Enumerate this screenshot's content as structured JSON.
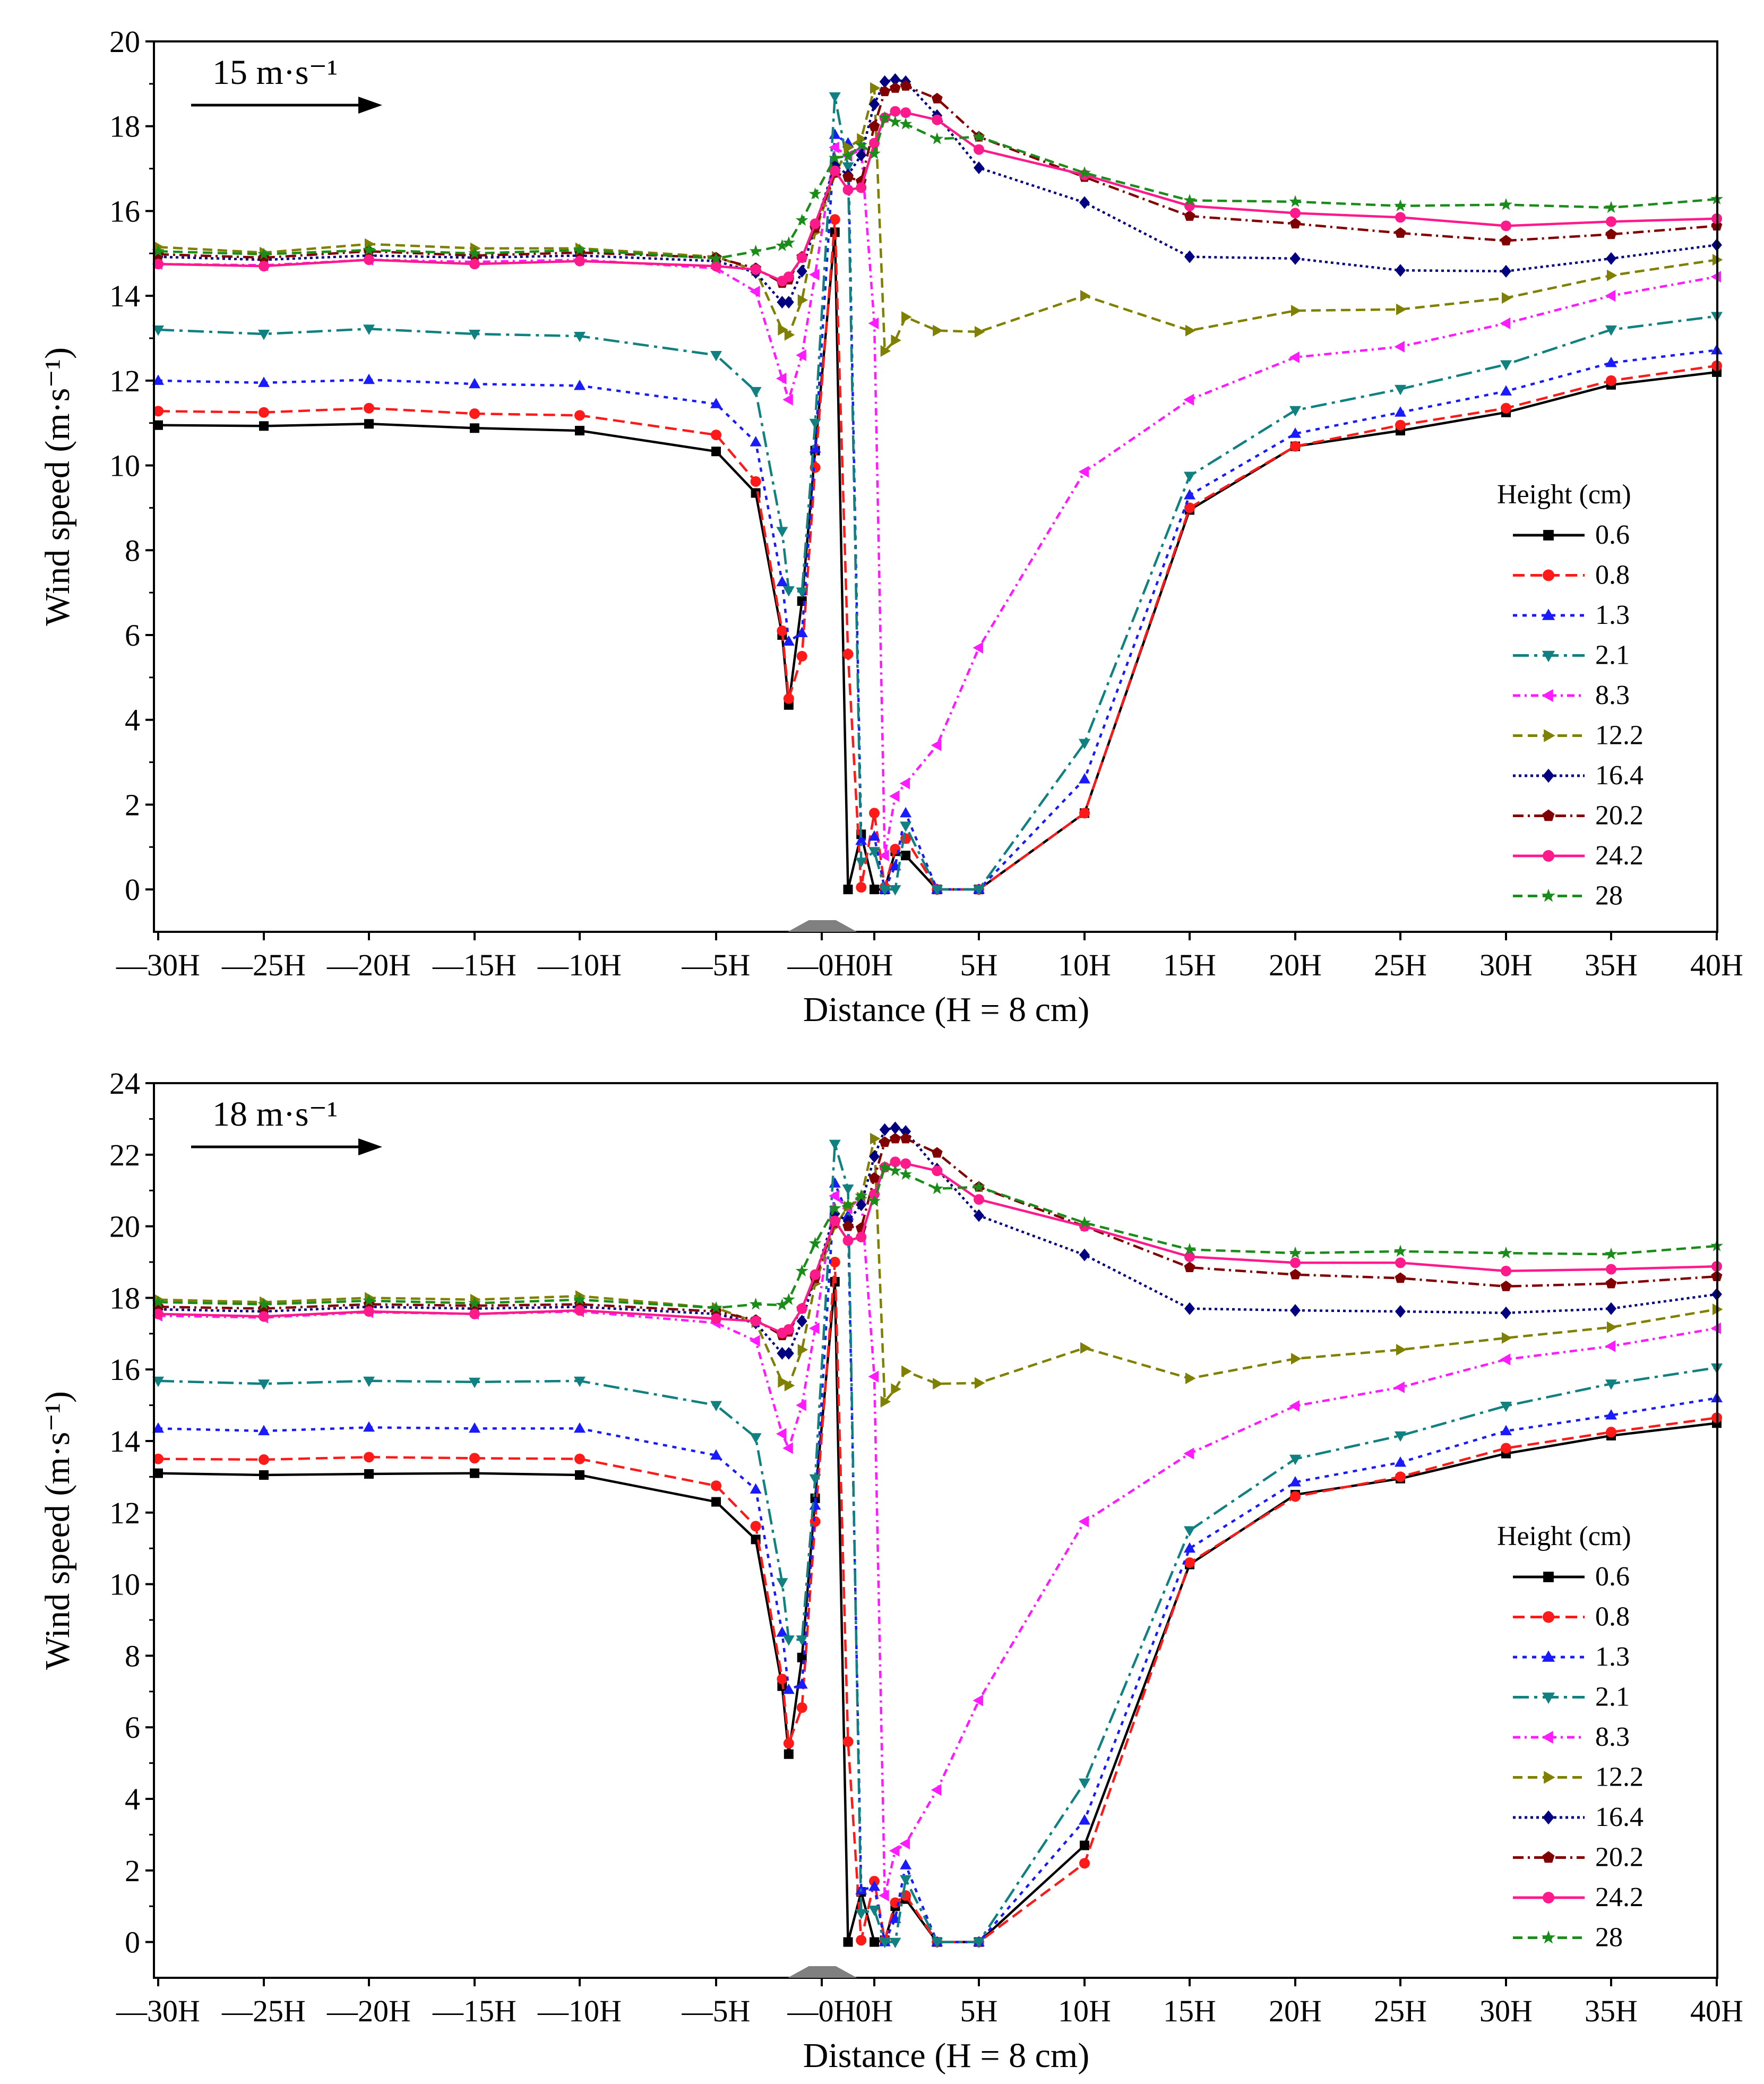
{
  "chart_data": [
    {
      "type": "line",
      "arrow_label": "15 m·s⁻¹",
      "ylabel": "Wind speed (m·s⁻¹)",
      "xlabel": "Distance (H = 8 cm)",
      "ylim": [
        -1,
        20
      ],
      "yticks": [
        0,
        2,
        4,
        6,
        8,
        10,
        12,
        14,
        16,
        18,
        20
      ],
      "legend_title": "Height (cm)",
      "x_tick_labels": [
        "—30H",
        "—25H",
        "—20H",
        "—15H",
        "—10H",
        "—5H",
        "—0H",
        "0H",
        "5H",
        "10H",
        "15H",
        "20H",
        "25H",
        "30H",
        "35H",
        "40H"
      ],
      "x": [
        -30,
        -25,
        -20,
        -15,
        -10,
        -5,
        -3.5,
        -2.5,
        -2.25,
        -1.75,
        -1.25,
        -0.75,
        -0.5,
        -0.25,
        0,
        0.5,
        1,
        1.5,
        3,
        5,
        10,
        15,
        20,
        25,
        30,
        35,
        40
      ],
      "series": [
        {
          "name": "0.6",
          "color": "#000000",
          "dash": "",
          "marker": "square",
          "values": [
            10.95,
            10.93,
            10.98,
            10.88,
            10.82,
            10.33,
            9.35,
            6.0,
            4.35,
            6.8,
            10.35,
            15.5,
            0.0,
            1.3,
            0.0,
            0.0,
            0.9,
            0.8,
            0.0,
            0.0,
            1.8,
            8.95,
            10.45,
            10.82,
            11.25,
            11.9,
            12.2
          ]
        },
        {
          "name": "0.8",
          "color": "#ff1a1a",
          "dash": "22,11",
          "marker": "circle",
          "values": [
            11.28,
            11.25,
            11.35,
            11.22,
            11.18,
            10.72,
            9.62,
            6.1,
            4.5,
            5.5,
            9.95,
            15.8,
            5.55,
            0.05,
            1.8,
            0.05,
            0.95,
            1.2,
            0.0,
            0.0,
            1.8,
            9.0,
            10.45,
            10.95,
            11.35,
            12.0,
            12.35
          ]
        },
        {
          "name": "1.3",
          "color": "#1a1aff",
          "dash": "8,10",
          "marker": "triangle-up",
          "values": [
            12.0,
            11.95,
            12.02,
            11.92,
            11.88,
            11.45,
            10.55,
            7.25,
            5.85,
            6.05,
            10.4,
            17.8,
            17.6,
            1.15,
            1.25,
            0.0,
            0.55,
            1.8,
            0.0,
            0.0,
            2.6,
            9.3,
            10.75,
            11.25,
            11.75,
            12.42,
            12.72
          ]
        },
        {
          "name": "2.1",
          "color": "#108080",
          "dash": "30,10,6,10",
          "marker": "triangle-down",
          "values": [
            13.2,
            13.1,
            13.22,
            13.1,
            13.05,
            12.6,
            11.75,
            8.45,
            7.05,
            7.02,
            11.0,
            18.7,
            17.05,
            0.65,
            0.9,
            0.0,
            0.0,
            1.5,
            0.0,
            0.0,
            3.45,
            9.75,
            11.3,
            11.8,
            12.38,
            13.2,
            13.52
          ]
        },
        {
          "name": "8.3",
          "color": "#ff1aff",
          "dash": "14,8,4,8",
          "marker": "triangle-left",
          "values": [
            14.75,
            14.72,
            14.85,
            14.8,
            14.85,
            14.65,
            14.1,
            12.05,
            11.55,
            12.6,
            14.5,
            17.5,
            17.3,
            17.45,
            13.35,
            0.8,
            2.2,
            2.5,
            3.4,
            5.7,
            9.85,
            11.55,
            12.55,
            12.8,
            13.35,
            14.0,
            14.45
          ]
        },
        {
          "name": "12.2",
          "color": "#808000",
          "dash": "18,10",
          "marker": "triangle-right",
          "values": [
            15.15,
            15.02,
            15.22,
            15.12,
            15.12,
            14.92,
            14.6,
            13.2,
            13.08,
            13.9,
            15.5,
            16.85,
            17.5,
            17.7,
            18.9,
            12.7,
            12.95,
            13.5,
            13.18,
            13.15,
            14.0,
            13.18,
            13.65,
            13.68,
            13.95,
            14.48,
            14.85
          ]
        },
        {
          "name": "16.4",
          "color": "#000080",
          "dash": "5,6",
          "marker": "diamond",
          "values": [
            14.92,
            14.85,
            14.95,
            14.9,
            14.95,
            14.82,
            14.55,
            13.85,
            13.85,
            14.58,
            15.65,
            17.08,
            16.85,
            17.32,
            18.52,
            19.05,
            19.1,
            19.05,
            18.25,
            17.02,
            16.2,
            14.92,
            14.88,
            14.6,
            14.58,
            14.88,
            15.2
          ]
        },
        {
          "name": "20.2",
          "color": "#800000",
          "dash": "20,8,4,8",
          "marker": "pentagon",
          "values": [
            14.98,
            14.9,
            15.05,
            14.95,
            15.02,
            14.9,
            14.65,
            14.3,
            14.38,
            14.92,
            15.6,
            16.9,
            16.8,
            16.7,
            18.0,
            18.82,
            18.9,
            18.95,
            18.65,
            17.75,
            16.8,
            15.88,
            15.7,
            15.48,
            15.3,
            15.45,
            15.65
          ]
        },
        {
          "name": "24.2",
          "color": "#ff1a8c",
          "dash": "",
          "marker": "circle",
          "values": [
            14.75,
            14.7,
            14.85,
            14.75,
            14.82,
            14.7,
            14.62,
            14.35,
            14.45,
            14.9,
            15.7,
            16.95,
            16.5,
            16.55,
            17.6,
            18.2,
            18.35,
            18.32,
            18.15,
            17.45,
            16.85,
            16.12,
            15.95,
            15.85,
            15.65,
            15.75,
            15.82
          ]
        },
        {
          "name": "28",
          "color": "#1a8c1a",
          "dash": "18,10",
          "marker": "star",
          "values": [
            15.05,
            14.98,
            15.08,
            15.0,
            15.08,
            14.88,
            15.05,
            15.18,
            15.25,
            15.78,
            16.4,
            17.25,
            17.3,
            17.55,
            17.35,
            18.2,
            18.1,
            18.05,
            17.7,
            17.75,
            16.9,
            16.25,
            16.22,
            16.12,
            16.15,
            16.08,
            16.28
          ]
        }
      ]
    },
    {
      "type": "line",
      "arrow_label": "18 m·s⁻¹",
      "ylabel": "Wind speed (m·s⁻¹)",
      "xlabel": "Distance (H = 8 cm)",
      "ylim": [
        -1,
        24
      ],
      "yticks": [
        0,
        2,
        4,
        6,
        8,
        10,
        12,
        14,
        16,
        18,
        20,
        22,
        24
      ],
      "legend_title": "Height (cm)",
      "x_tick_labels": [
        "—30H",
        "—25H",
        "—20H",
        "—15H",
        "—10H",
        "—5H",
        "—0H",
        "0H",
        "5H",
        "10H",
        "15H",
        "20H",
        "25H",
        "30H",
        "35H",
        "40H"
      ],
      "x": [
        -30,
        -25,
        -20,
        -15,
        -10,
        -5,
        -3.5,
        -2.5,
        -2.25,
        -1.75,
        -1.25,
        -0.75,
        -0.5,
        -0.25,
        0,
        0.5,
        1,
        1.5,
        3,
        5,
        10,
        15,
        20,
        25,
        30,
        35,
        40
      ],
      "series": [
        {
          "name": "0.6",
          "color": "#000000",
          "dash": "",
          "marker": "square",
          "values": [
            13.1,
            13.05,
            13.08,
            13.1,
            13.05,
            12.3,
            11.25,
            7.15,
            5.25,
            7.95,
            12.4,
            18.45,
            0.0,
            1.4,
            0.0,
            0.05,
            1.0,
            1.2,
            0.0,
            0.0,
            2.7,
            10.55,
            12.5,
            12.95,
            13.65,
            14.15,
            14.5
          ]
        },
        {
          "name": "0.8",
          "color": "#ff1a1a",
          "dash": "22,11",
          "marker": "circle",
          "values": [
            13.5,
            13.48,
            13.55,
            13.52,
            13.5,
            12.75,
            11.62,
            7.35,
            5.55,
            6.55,
            11.75,
            19.0,
            5.6,
            0.05,
            1.7,
            0.05,
            1.1,
            1.3,
            0.0,
            0.0,
            2.2,
            10.6,
            12.45,
            13.0,
            13.8,
            14.25,
            14.65
          ]
        },
        {
          "name": "1.3",
          "color": "#1a1aff",
          "dash": "8,10",
          "marker": "triangle-up",
          "values": [
            14.35,
            14.28,
            14.38,
            14.35,
            14.35,
            13.6,
            12.65,
            8.65,
            7.05,
            7.2,
            12.2,
            21.2,
            20.3,
            1.45,
            1.55,
            0.0,
            0.65,
            2.15,
            0.0,
            0.0,
            3.4,
            11.0,
            12.85,
            13.4,
            14.28,
            14.72,
            15.2
          ]
        },
        {
          "name": "2.1",
          "color": "#108080",
          "dash": "30,10,6,10",
          "marker": "triangle-down",
          "values": [
            15.68,
            15.6,
            15.68,
            15.65,
            15.68,
            15.0,
            14.1,
            10.05,
            8.45,
            8.45,
            12.95,
            22.3,
            21.05,
            0.8,
            0.9,
            0.0,
            0.0,
            1.75,
            0.0,
            0.0,
            4.45,
            11.5,
            13.5,
            14.15,
            14.98,
            15.6,
            16.05
          ]
        },
        {
          "name": "8.3",
          "color": "#ff1aff",
          "dash": "14,8,4,8",
          "marker": "triangle-left",
          "values": [
            17.5,
            17.45,
            17.6,
            17.55,
            17.62,
            17.3,
            16.8,
            14.2,
            13.8,
            15.0,
            17.15,
            20.85,
            20.5,
            20.8,
            15.8,
            1.3,
            2.55,
            2.75,
            4.25,
            6.75,
            11.75,
            13.65,
            14.98,
            15.5,
            16.28,
            16.65,
            17.15
          ]
        },
        {
          "name": "12.2",
          "color": "#808000",
          "dash": "18,10",
          "marker": "triangle-right",
          "values": [
            17.95,
            17.88,
            18.0,
            17.95,
            18.05,
            17.72,
            17.32,
            15.65,
            15.55,
            16.55,
            18.4,
            20.0,
            20.55,
            20.8,
            22.45,
            15.1,
            15.45,
            15.95,
            15.6,
            15.62,
            16.6,
            15.75,
            16.3,
            16.55,
            16.88,
            17.18,
            17.68
          ]
        },
        {
          "name": "16.4",
          "color": "#000080",
          "dash": "5,6",
          "marker": "diamond",
          "values": [
            17.68,
            17.62,
            17.75,
            17.7,
            17.75,
            17.55,
            17.3,
            16.45,
            16.45,
            17.35,
            18.6,
            20.35,
            20.15,
            20.6,
            21.95,
            22.7,
            22.75,
            22.65,
            21.6,
            20.3,
            19.2,
            17.7,
            17.65,
            17.62,
            17.58,
            17.7,
            18.1
          ]
        },
        {
          "name": "20.2",
          "color": "#800000",
          "dash": "20,8,4,8",
          "marker": "pentagon",
          "values": [
            17.75,
            17.7,
            17.82,
            17.78,
            17.82,
            17.62,
            17.38,
            16.95,
            17.05,
            17.7,
            18.55,
            20.1,
            20.0,
            19.95,
            21.35,
            22.35,
            22.45,
            22.45,
            22.05,
            21.1,
            20.0,
            18.85,
            18.65,
            18.55,
            18.32,
            18.4,
            18.6
          ]
        },
        {
          "name": "24.2",
          "color": "#ff1a8c",
          "dash": "",
          "marker": "circle",
          "values": [
            17.55,
            17.48,
            17.62,
            17.55,
            17.65,
            17.42,
            17.35,
            17.02,
            17.12,
            17.7,
            18.65,
            20.15,
            19.6,
            19.7,
            20.9,
            21.65,
            21.8,
            21.75,
            21.55,
            20.75,
            20.0,
            19.15,
            18.98,
            18.98,
            18.75,
            18.8,
            18.88
          ]
        },
        {
          "name": "28",
          "color": "#1a8c1a",
          "dash": "18,10",
          "marker": "star",
          "values": [
            17.88,
            17.82,
            17.92,
            17.85,
            17.95,
            17.72,
            17.82,
            17.8,
            17.95,
            18.75,
            19.52,
            20.5,
            20.6,
            20.85,
            20.7,
            21.65,
            21.55,
            21.45,
            21.05,
            21.1,
            20.1,
            19.35,
            19.25,
            19.3,
            19.25,
            19.22,
            19.45
          ]
        }
      ]
    }
  ]
}
